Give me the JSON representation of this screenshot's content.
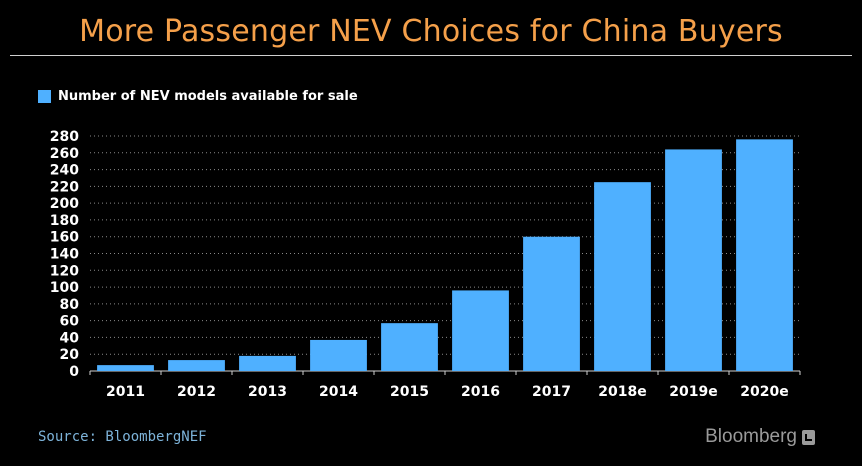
{
  "header": {
    "title": "More Passenger NEV Choices for China Buyers"
  },
  "footer": {
    "source": "Source: BloombergNEF",
    "brand": "Bloomberg"
  },
  "colors": {
    "background": "#000000",
    "title": "#f5a04a",
    "bar": "#4fb0ff",
    "axis_text": "#ffffff",
    "source_text": "#7db3d9",
    "brand_text": "#9a9a9a"
  },
  "chart_data": {
    "type": "bar",
    "title": "More Passenger NEV Choices for China Buyers",
    "categories": [
      "2011",
      "2012",
      "2013",
      "2014",
      "2015",
      "2016",
      "2017",
      "2018e",
      "2019e",
      "2020e"
    ],
    "series": [
      {
        "name": "Number of NEV models available for sale",
        "values": [
          7,
          13,
          18,
          37,
          57,
          96,
          160,
          225,
          264,
          276
        ]
      }
    ],
    "xlabel": "",
    "ylabel": "",
    "ylim": [
      0,
      280
    ],
    "yticks": [
      0,
      20,
      40,
      60,
      80,
      100,
      120,
      140,
      160,
      180,
      200,
      220,
      240,
      260,
      280
    ],
    "grid": true,
    "legend": "top-left"
  }
}
